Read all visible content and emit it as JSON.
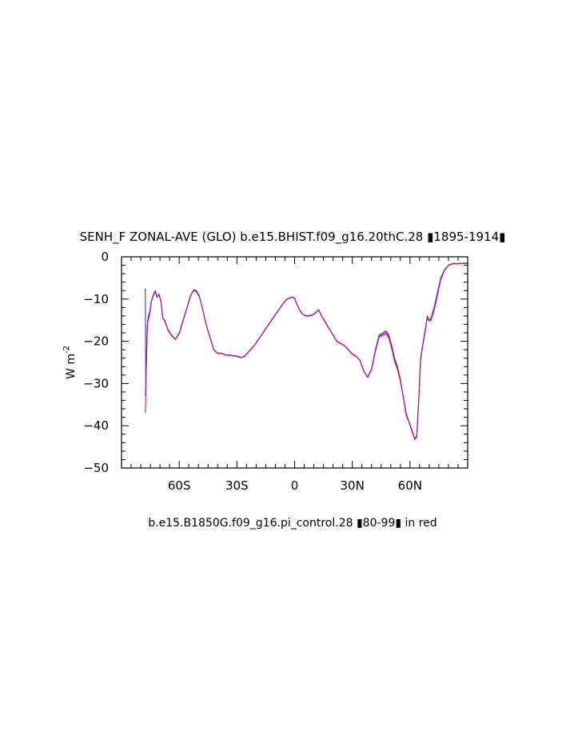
{
  "chart_data": {
    "type": "line",
    "title": "SENH_F ZONAL-AVE (GLO) b.e15.BHIST.f09_g16.20thC.28 ▮1895-1914▮",
    "xlabel": "b.e15.B1850G.f09_g16.pi_control.28 ▮80-99▮ in red",
    "ylabel": "W m",
    "ylabel_sup": "-2",
    "xlim": [
      -90,
      90
    ],
    "ylim": [
      -50,
      0
    ],
    "xticks": [
      {
        "value": -60,
        "label": "60S"
      },
      {
        "value": -30,
        "label": "30S"
      },
      {
        "value": 0,
        "label": "0"
      },
      {
        "value": 30,
        "label": "30N"
      },
      {
        "value": 60,
        "label": "60N"
      }
    ],
    "yticks": [
      {
        "value": 0,
        "label": "0"
      },
      {
        "value": -10,
        "label": "−10"
      },
      {
        "value": -20,
        "label": "−20"
      },
      {
        "value": -30,
        "label": "−30"
      },
      {
        "value": -40,
        "label": "−40"
      },
      {
        "value": -50,
        "label": "−50"
      }
    ],
    "grid": false,
    "series": [
      {
        "color": "#3030ff",
        "points": [
          [
            -77.6,
            -7.5
          ],
          [
            -77.4,
            -30
          ],
          [
            -77.0,
            -24
          ],
          [
            -76.6,
            -16
          ],
          [
            -76.0,
            -14
          ],
          [
            -75.3,
            -13
          ],
          [
            -74.5,
            -10.5
          ],
          [
            -73.5,
            -9
          ],
          [
            -72.5,
            -8
          ],
          [
            -71.5,
            -9.5
          ],
          [
            -70.5,
            -8.8
          ],
          [
            -69.5,
            -10.5
          ],
          [
            -68.5,
            -14.5
          ],
          [
            -67.5,
            -15
          ],
          [
            -66,
            -17
          ],
          [
            -64,
            -18.5
          ],
          [
            -62,
            -19.5
          ],
          [
            -60,
            -18
          ],
          [
            -58,
            -15
          ],
          [
            -56,
            -12
          ],
          [
            -54,
            -9
          ],
          [
            -52.5,
            -8
          ],
          [
            -51,
            -8.3
          ],
          [
            -49.5,
            -9.5
          ],
          [
            -48,
            -12
          ],
          [
            -46,
            -16
          ],
          [
            -44,
            -19
          ],
          [
            -42,
            -22
          ],
          [
            -40,
            -22.8
          ],
          [
            -38,
            -22.8
          ],
          [
            -36,
            -23.2
          ],
          [
            -33,
            -23.3
          ],
          [
            -30,
            -23.5
          ],
          [
            -28,
            -23.8
          ],
          [
            -26,
            -23.5
          ],
          [
            -24,
            -22.5
          ],
          [
            -21,
            -21
          ],
          [
            -18,
            -19
          ],
          [
            -15,
            -17
          ],
          [
            -12,
            -15
          ],
          [
            -9,
            -13
          ],
          [
            -6,
            -11
          ],
          [
            -4,
            -10
          ],
          [
            -1.5,
            -9.5
          ],
          [
            0,
            -9.7
          ],
          [
            1,
            -11
          ],
          [
            2.5,
            -12.5
          ],
          [
            4,
            -13.5
          ],
          [
            6,
            -14
          ],
          [
            9,
            -13.8
          ],
          [
            11,
            -13.2
          ],
          [
            12.5,
            -12.5
          ],
          [
            14,
            -14
          ],
          [
            16,
            -15.5
          ],
          [
            18,
            -17
          ],
          [
            20,
            -18.5
          ],
          [
            22,
            -20
          ],
          [
            24,
            -20.5
          ],
          [
            26,
            -21
          ],
          [
            28,
            -22
          ],
          [
            30,
            -23
          ],
          [
            32,
            -23.5
          ],
          [
            34,
            -24.5
          ],
          [
            36,
            -27
          ],
          [
            38,
            -28.5
          ],
          [
            40,
            -26.5
          ],
          [
            42,
            -22
          ],
          [
            44,
            -18.5
          ],
          [
            46,
            -18
          ],
          [
            47.5,
            -17.5
          ],
          [
            49,
            -18.5
          ],
          [
            50.5,
            -21
          ],
          [
            52,
            -24
          ],
          [
            53.5,
            -26
          ],
          [
            55,
            -29
          ],
          [
            56.5,
            -33
          ],
          [
            58,
            -37
          ],
          [
            59.5,
            -39
          ],
          [
            61,
            -41
          ],
          [
            62.5,
            -43
          ],
          [
            63.5,
            -42.5
          ],
          [
            64.5,
            -34
          ],
          [
            65.5,
            -24
          ],
          [
            66.5,
            -21
          ],
          [
            68,
            -17
          ],
          [
            69,
            -14
          ],
          [
            70,
            -15
          ],
          [
            71,
            -14.5
          ],
          [
            72.5,
            -12
          ],
          [
            74,
            -9
          ],
          [
            76,
            -5
          ],
          [
            78,
            -3
          ],
          [
            80,
            -2
          ],
          [
            82,
            -1.6
          ],
          [
            85,
            -1.6
          ],
          [
            88,
            -1.5
          ],
          [
            90,
            -1.5
          ]
        ]
      },
      {
        "color": "#ff2020",
        "points": [
          [
            -77.6,
            -37
          ],
          [
            -77.2,
            -28
          ],
          [
            -76.8,
            -20
          ],
          [
            -76.4,
            -15.5
          ],
          [
            -75.8,
            -14.5
          ],
          [
            -75.3,
            -13.5
          ],
          [
            -74.5,
            -10.8
          ],
          [
            -73.5,
            -9.2
          ],
          [
            -72.5,
            -8.3
          ],
          [
            -71.5,
            -9.6
          ],
          [
            -70.5,
            -9
          ],
          [
            -69.5,
            -10.6
          ],
          [
            -68.5,
            -14.6
          ],
          [
            -67.5,
            -15.2
          ],
          [
            -66,
            -17.2
          ],
          [
            -64,
            -18.7
          ],
          [
            -62,
            -19.6
          ],
          [
            -60,
            -18.2
          ],
          [
            -58,
            -15.2
          ],
          [
            -56,
            -12.2
          ],
          [
            -54,
            -9.2
          ],
          [
            -52.5,
            -7.8
          ],
          [
            -51,
            -8
          ],
          [
            -49.5,
            -9.3
          ],
          [
            -48,
            -12
          ],
          [
            -46,
            -16
          ],
          [
            -44,
            -19.2
          ],
          [
            -42,
            -22.1
          ],
          [
            -40,
            -22.9
          ],
          [
            -38,
            -22.9
          ],
          [
            -36,
            -23.3
          ],
          [
            -33,
            -23.4
          ],
          [
            -30,
            -23.6
          ],
          [
            -28,
            -23.9
          ],
          [
            -26,
            -23.6
          ],
          [
            -24,
            -22.6
          ],
          [
            -21,
            -21.1
          ],
          [
            -18,
            -19.1
          ],
          [
            -15,
            -17.1
          ],
          [
            -12,
            -15.1
          ],
          [
            -9,
            -13.1
          ],
          [
            -6,
            -11.1
          ],
          [
            -4,
            -10.1
          ],
          [
            -1.5,
            -9.6
          ],
          [
            0,
            -9.8
          ],
          [
            1,
            -11.1
          ],
          [
            2.5,
            -12.6
          ],
          [
            4,
            -13.6
          ],
          [
            6,
            -14.1
          ],
          [
            9,
            -13.9
          ],
          [
            11,
            -13.3
          ],
          [
            12.5,
            -12.6
          ],
          [
            14,
            -14.1
          ],
          [
            16,
            -15.6
          ],
          [
            18,
            -17.1
          ],
          [
            20,
            -18.6
          ],
          [
            22,
            -20.1
          ],
          [
            24,
            -20.6
          ],
          [
            26,
            -21.1
          ],
          [
            28,
            -22.1
          ],
          [
            30,
            -23.1
          ],
          [
            32,
            -23.6
          ],
          [
            34,
            -24.6
          ],
          [
            36,
            -27.2
          ],
          [
            38,
            -28.6
          ],
          [
            40,
            -26.8
          ],
          [
            42,
            -22.5
          ],
          [
            44,
            -19
          ],
          [
            46,
            -18.6
          ],
          [
            47.5,
            -18.3
          ],
          [
            49,
            -19.2
          ],
          [
            50.5,
            -21.8
          ],
          [
            52,
            -24.8
          ],
          [
            53.5,
            -26.8
          ],
          [
            55,
            -29.5
          ],
          [
            56.5,
            -33.3
          ],
          [
            58,
            -37.5
          ],
          [
            59.5,
            -39.2
          ],
          [
            61,
            -41.3
          ],
          [
            62.5,
            -43.3
          ],
          [
            63.5,
            -42.7
          ],
          [
            64.5,
            -34.5
          ],
          [
            65.5,
            -24.5
          ],
          [
            66.5,
            -21.5
          ],
          [
            68,
            -17.5
          ],
          [
            69,
            -14.5
          ],
          [
            70,
            -15.2
          ],
          [
            71,
            -15
          ],
          [
            72.5,
            -12.8
          ],
          [
            74,
            -9.8
          ],
          [
            76,
            -5.5
          ],
          [
            78,
            -3.2
          ],
          [
            80,
            -2.1
          ],
          [
            82,
            -1.7
          ],
          [
            85,
            -1.7
          ],
          [
            88,
            -1.6
          ],
          [
            90,
            -1.6
          ]
        ]
      },
      {
        "color": "#a020a0",
        "points": [
          [
            -77.6,
            -33
          ],
          [
            -77.2,
            -27
          ],
          [
            -76.8,
            -19
          ],
          [
            -76.4,
            -15.2
          ],
          [
            -75.8,
            -14.2
          ],
          [
            -75.3,
            -13.2
          ],
          [
            -74.5,
            -10.6
          ],
          [
            -73.5,
            -9.1
          ],
          [
            -72.5,
            -8.1
          ],
          [
            -71.5,
            -9.5
          ],
          [
            -70.5,
            -8.9
          ],
          [
            -69.5,
            -10.5
          ],
          [
            -68.5,
            -14.5
          ],
          [
            -67.5,
            -15.1
          ],
          [
            -66,
            -17.1
          ],
          [
            -64,
            -18.6
          ],
          [
            -62,
            -19.5
          ],
          [
            -60,
            -18.1
          ],
          [
            -58,
            -15.1
          ],
          [
            -56,
            -12.1
          ],
          [
            -54,
            -9.1
          ],
          [
            -52.5,
            -7.9
          ],
          [
            -51,
            -8.1
          ],
          [
            -49.5,
            -9.4
          ],
          [
            -48,
            -12
          ],
          [
            -46,
            -16
          ],
          [
            -44,
            -19.1
          ],
          [
            -42,
            -22
          ],
          [
            -40,
            -22.8
          ],
          [
            -38,
            -22.8
          ],
          [
            -36,
            -23.2
          ],
          [
            -33,
            -23.3
          ],
          [
            -30,
            -23.5
          ],
          [
            -28,
            -23.8
          ],
          [
            -26,
            -23.5
          ],
          [
            -24,
            -22.5
          ],
          [
            -21,
            -21
          ],
          [
            -18,
            -19
          ],
          [
            -15,
            -17
          ],
          [
            -12,
            -15
          ],
          [
            -9,
            -13
          ],
          [
            -6,
            -11
          ],
          [
            -4,
            -10
          ],
          [
            -1.5,
            -9.5
          ],
          [
            0,
            -9.7
          ],
          [
            1,
            -11
          ],
          [
            2.5,
            -12.5
          ],
          [
            4,
            -13.5
          ],
          [
            6,
            -14
          ],
          [
            9,
            -13.8
          ],
          [
            11,
            -13.2
          ],
          [
            12.5,
            -12.5
          ],
          [
            14,
            -14
          ],
          [
            16,
            -15.5
          ],
          [
            18,
            -17
          ],
          [
            20,
            -18.5
          ],
          [
            22,
            -20
          ],
          [
            24,
            -20.5
          ],
          [
            26,
            -21
          ],
          [
            28,
            -22
          ],
          [
            30,
            -23
          ],
          [
            32,
            -23.5
          ],
          [
            34,
            -24.5
          ],
          [
            36,
            -27.1
          ],
          [
            38,
            -28.5
          ],
          [
            40,
            -26.6
          ],
          [
            42,
            -22.2
          ],
          [
            44,
            -18.8
          ],
          [
            46,
            -18.3
          ],
          [
            47.5,
            -17.9
          ],
          [
            49,
            -18.9
          ],
          [
            50.5,
            -21.4
          ],
          [
            52,
            -24.4
          ],
          [
            53.5,
            -26.4
          ],
          [
            55,
            -29.2
          ],
          [
            56.5,
            -33.1
          ],
          [
            58,
            -37.2
          ],
          [
            59.5,
            -39.1
          ],
          [
            61,
            -41.1
          ],
          [
            62.5,
            -43.1
          ],
          [
            63.5,
            -42.6
          ],
          [
            64.5,
            -34.2
          ],
          [
            65.5,
            -24.2
          ],
          [
            66.5,
            -21.2
          ],
          [
            68,
            -17.2
          ],
          [
            69,
            -14.2
          ],
          [
            70,
            -15.1
          ],
          [
            71,
            -14.8
          ],
          [
            72.5,
            -12.4
          ],
          [
            74,
            -9.4
          ],
          [
            76,
            -5.2
          ],
          [
            78,
            -3.1
          ],
          [
            80,
            -2
          ],
          [
            82,
            -1.6
          ],
          [
            85,
            -1.6
          ],
          [
            88,
            -1.5
          ],
          [
            90,
            -1.5
          ]
        ]
      }
    ]
  }
}
